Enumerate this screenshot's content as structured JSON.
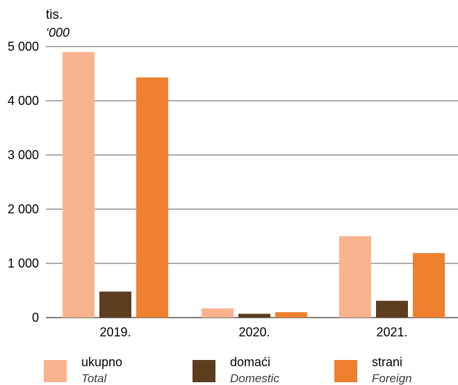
{
  "chart_data": {
    "type": "bar",
    "unit_label": "tis.",
    "unit_label_en": "‘000",
    "categories": [
      "2019.",
      "2020.",
      "2021."
    ],
    "series": [
      {
        "name": "ukupno",
        "name_en": "Total",
        "color": "#f9b38e",
        "values": [
          4900,
          170,
          1500
        ]
      },
      {
        "name": "domaći",
        "name_en": "Domestic",
        "color": "#5e3d1f",
        "values": [
          480,
          70,
          310
        ]
      },
      {
        "name": "strani",
        "name_en": "Foreign",
        "color": "#ef8030",
        "values": [
          4430,
          100,
          1190
        ]
      }
    ],
    "ylim": [
      0,
      5000
    ],
    "yticks": [
      0,
      1000,
      2000,
      3000,
      4000,
      5000
    ],
    "ytick_labels": [
      "0",
      "1 000",
      "2 000",
      "3 000",
      "4 000",
      "5 000"
    ],
    "grid": true,
    "gridline_color": "#555555",
    "legend_position": "bottom"
  }
}
